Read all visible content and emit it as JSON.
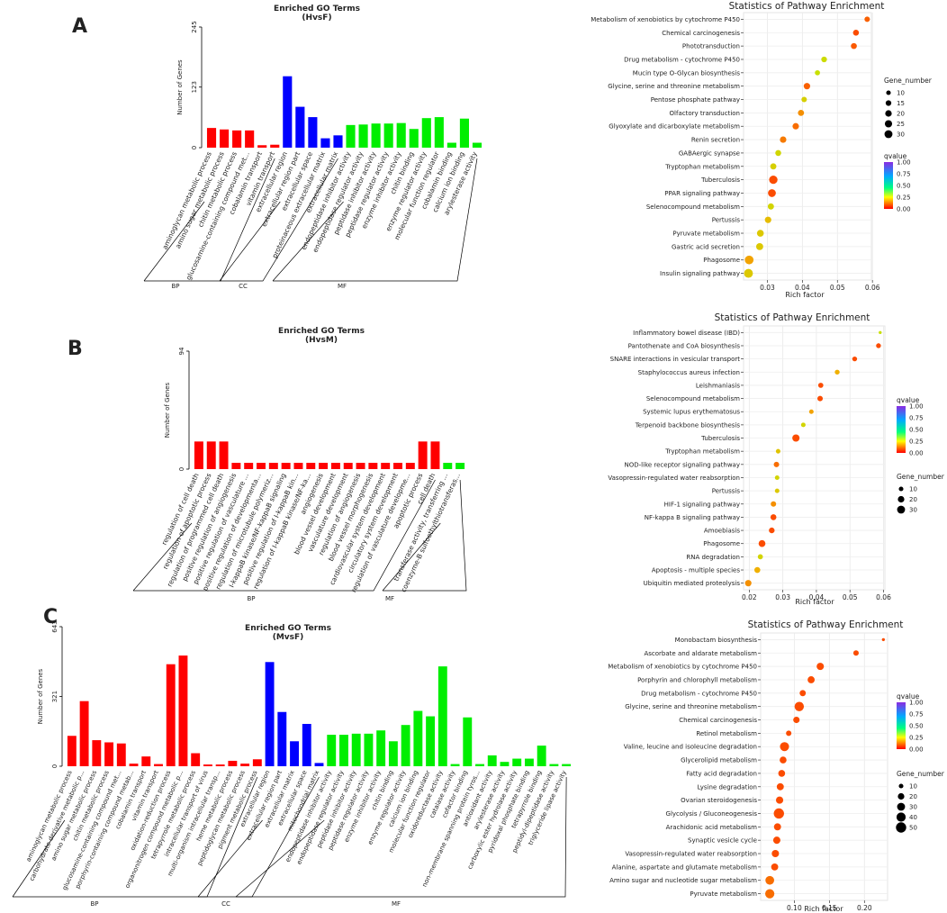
{
  "panel_labels": [
    "A",
    "B",
    "C"
  ],
  "go_group_color": {
    "BP": "#ff0000",
    "CC": "#0000ff",
    "MF": "#00ee00"
  },
  "bubble_fill_colors": {
    "low": "#ff2a00",
    "mid": "#f0b000",
    "high": "#c8e000"
  },
  "chart_data": [
    {
      "id": "goA",
      "type": "bar",
      "title": "Enriched GO Terms",
      "subtitle": "(HvsF)",
      "ylabel": "Number of Genes",
      "ylim": [
        0,
        245
      ],
      "yticks": [
        "0",
        "123",
        "245"
      ],
      "group_labels": [
        "BP",
        "CC",
        "MF"
      ],
      "categories": [
        "aminoglycan metabolic process",
        "amino sugar metabolic process",
        "chitin metabolic process",
        "glucosamine-containing compound met...",
        "cobalamin transport",
        "vitamin transport",
        "extracellular region",
        "extracellular region part",
        "extracellular space",
        "proteinaceous extracellular matrix",
        "extracellular matrix",
        "endopeptidase inhibitor activity",
        "endopeptidase regulator activity",
        "peptidase inhibitor activity",
        "peptidase regulator activity",
        "enzyme inhibitor activity",
        "chitin binding",
        "enzyme regulator activity",
        "molecular function regulator",
        "cobalamin binding",
        "calcium ion binding",
        "arylesterase activity"
      ],
      "groups": [
        "BP",
        "BP",
        "BP",
        "BP",
        "BP",
        "BP",
        "CC",
        "CC",
        "CC",
        "CC",
        "CC",
        "MF",
        "MF",
        "MF",
        "MF",
        "MF",
        "MF",
        "MF",
        "MF",
        "MF",
        "MF",
        "MF"
      ],
      "values": [
        40,
        37,
        35,
        35,
        5,
        6,
        145,
        83,
        62,
        19,
        25,
        46,
        47,
        49,
        49,
        50,
        38,
        60,
        62,
        10,
        59,
        10
      ]
    },
    {
      "id": "goB",
      "type": "bar",
      "title": "Enriched GO Terms",
      "subtitle": "(HvsM)",
      "ylabel": "Number of Genes",
      "ylim": [
        0,
        94
      ],
      "yticks": [
        "0",
        "94"
      ],
      "group_labels": [
        "BP",
        "MF"
      ],
      "categories": [
        "regulation of cell death",
        "regulation of apoptotic process",
        "regulation of programmed cell death",
        "positive regulation of angiogenesis",
        "positive regulation of vasculature ...",
        "positive regulation of developmenta...",
        "regulation of microtubule polymeriz...",
        "I-kappaB kinase/NF-kappaB signaling",
        "positive regulation of I-kappaB kin...",
        "regulation of I-kappaB kinase/NF-ka...",
        "angiogenesis",
        "blood vessel development",
        "vasculature development",
        "regulation of angiogenesis",
        "blood vessel morphogenesis",
        "cardiovascular system development",
        "circulatory system development",
        "regulation of vasculature developme...",
        "apoptotic process",
        "cell death",
        "transferase activity, transferring ...",
        "coenzyme-B sulfoethylthiotransferas..."
      ],
      "groups": [
        "BP",
        "BP",
        "BP",
        "BP",
        "BP",
        "BP",
        "BP",
        "BP",
        "BP",
        "BP",
        "BP",
        "BP",
        "BP",
        "BP",
        "BP",
        "BP",
        "BP",
        "BP",
        "BP",
        "BP",
        "MF",
        "MF"
      ],
      "values": [
        22,
        22,
        22,
        5,
        5,
        5,
        5,
        5,
        5,
        5,
        5,
        5,
        5,
        5,
        5,
        5,
        5,
        5,
        22,
        22,
        5,
        5
      ]
    },
    {
      "id": "goC",
      "type": "bar",
      "title": "Enriched GO Terms",
      "subtitle": "(MvsF)",
      "ylabel": "Number of Genes",
      "ylim": [
        0,
        643
      ],
      "yticks": [
        "0",
        "321",
        "643"
      ],
      "group_labels": [
        "BP",
        "CC",
        "MF"
      ],
      "categories": [
        "aminoglycan metabolic process",
        "carbohydrate derivative metabolic p...",
        "amino sugar metabolic process",
        "chitin metabolic process",
        "glucosamine-containing compound met...",
        "porphyrin-containing compound metab...",
        "cobalamin transport",
        "vitamin transport",
        "oxidation-reduction process",
        "organonitrogen compound metabolic p...",
        "tetrapyrrole metabolic process",
        "intracellular transport of virus",
        "multi-organism intracellular transp...",
        "heme metabolic process",
        "peptidoglycan metabolic process",
        "pigment metabolic process",
        "extracellular region",
        "extracellular region part",
        "extracellular matrix",
        "extracellular space",
        "mitochondrial matrix",
        "endopeptidase inhibitor activity",
        "endopeptidase regulator activity",
        "peptidase inhibitor activity",
        "peptidase regulator activity",
        "enzyme inhibitor activity",
        "chitin binding",
        "enzyme regulator activity",
        "calcium ion binding",
        "molecular function regulator",
        "oxidoreductase activity",
        "catalase activity",
        "cofactor binding",
        "non-membrane spanning protein tyros...",
        "antioxidant activity",
        "arylesterase activity",
        "carboxylic ester hydrolase activity",
        "pyridoxal phosphate binding",
        "tetrapyrrole binding",
        "peptidyl-dipeptidase activity",
        "triglyceride lipase activity"
      ],
      "groups": [
        "BP",
        "BP",
        "BP",
        "BP",
        "BP",
        "BP",
        "BP",
        "BP",
        "BP",
        "BP",
        "BP",
        "BP",
        "BP",
        "BP",
        "BP",
        "BP",
        "CC",
        "CC",
        "CC",
        "CC",
        "CC",
        "MF",
        "MF",
        "MF",
        "MF",
        "MF",
        "MF",
        "MF",
        "MF",
        "MF",
        "MF",
        "MF",
        "MF",
        "MF",
        "MF",
        "MF",
        "MF",
        "MF",
        "MF",
        "MF",
        "MF"
      ],
      "values": [
        140,
        300,
        120,
        110,
        105,
        12,
        45,
        10,
        470,
        510,
        60,
        8,
        8,
        25,
        12,
        32,
        480,
        250,
        115,
        195,
        15,
        145,
        145,
        150,
        150,
        165,
        115,
        190,
        255,
        230,
        460,
        10,
        225,
        10,
        50,
        20,
        35,
        35,
        95,
        10,
        10
      ]
    },
    {
      "id": "kA",
      "type": "scatter",
      "title": "Statistics of Pathway Enrichment",
      "xlabel": "Rich factor",
      "xlim": [
        0.0232,
        0.0597
      ],
      "xticks": [
        0.03,
        0.04,
        0.05,
        0.06
      ],
      "xtick_labels": [
        "0.03",
        "0.04",
        "0.05",
        "0.06"
      ],
      "size_legend_title": "Gene_number",
      "size_legend_values": [
        10,
        15,
        20,
        25,
        30
      ],
      "color_legend_title": "qvalue",
      "color_legend_ticks": [
        "1.00",
        "0.75",
        "0.50",
        "0.25",
        "0.00"
      ],
      "pathways": [
        "Metabolism of xenobiotics by cytochrome P450",
        "Chemical carcinogenesis",
        "Phototransduction",
        "Drug metabolism - cytochrome P450",
        "Mucin type O-Glycan biosynthesis",
        "Glycine, serine and threonine metabolism",
        "Pentose phosphate pathway",
        "Olfactory transduction",
        "Glyoxylate and dicarboxylate metabolism",
        "Renin secretion",
        "GABAergic synapse",
        "Tryptophan metabolism",
        "Tuberculosis",
        "PPAR signaling pathway",
        "Selenocompound metabolism",
        "Pertussis",
        "Pyruvate metabolism",
        "Gastric acid secretion",
        "Phagosome",
        "Insulin signaling pathway"
      ],
      "rich_factor": [
        0.0585,
        0.0553,
        0.0547,
        0.0462,
        0.0443,
        0.0413,
        0.0405,
        0.0396,
        0.0381,
        0.0345,
        0.0331,
        0.0317,
        0.0317,
        0.0313,
        0.031,
        0.0302,
        0.028,
        0.0278,
        0.0248,
        0.0246
      ],
      "gene_number": [
        10,
        12,
        12,
        11,
        9,
        14,
        10,
        13,
        14,
        14,
        12,
        13,
        24,
        21,
        13,
        14,
        16,
        17,
        26,
        27
      ],
      "qvalue": [
        0.08,
        0.05,
        0.07,
        0.38,
        0.45,
        0.08,
        0.33,
        0.15,
        0.1,
        0.12,
        0.36,
        0.33,
        0.05,
        0.05,
        0.35,
        0.25,
        0.3,
        0.3,
        0.18,
        0.3
      ]
    },
    {
      "id": "kB",
      "type": "scatter",
      "title": "Statistics of Pathway Enrichment",
      "xlabel": "Rich factor",
      "xlim": [
        0.0183,
        0.0604
      ],
      "xticks": [
        0.02,
        0.03,
        0.04,
        0.05,
        0.06
      ],
      "xtick_labels": [
        "0.02",
        "0.03",
        "0.04",
        "0.05",
        "0.06"
      ],
      "size_legend_title": "Gene_number",
      "size_legend_values": [
        10,
        20,
        30
      ],
      "color_legend_title": "qvalue",
      "color_legend_ticks": [
        "1.00",
        "0.75",
        "0.50",
        "0.25",
        "0.00"
      ],
      "pathways": [
        "Inflammatory bowel disease (IBD)",
        "Pantothenate and CoA biosynthesis",
        "SNARE interactions in vesicular transport",
        "Staphylococcus aureus infection",
        "Leishmaniasis",
        "Selenocompound metabolism",
        "Systemic lupus erythematosus",
        "Terpenoid backbone biosynthesis",
        "Tuberculosis",
        "Tryptophan metabolism",
        "NOD-like receptor signaling pathway",
        "Vasopressin-regulated water reabsorption",
        "Pertussis",
        "HIF-1 signaling pathway",
        "NF-kappa B signaling pathway",
        "Amoebiasis",
        "Phagosome",
        "RNA degradation",
        "Apoptosis - multiple species",
        "Ubiquitin mediated proteolysis"
      ],
      "rich_factor": [
        0.059,
        0.0585,
        0.0514,
        0.0462,
        0.0413,
        0.0411,
        0.0385,
        0.0361,
        0.0339,
        0.0286,
        0.0281,
        0.0283,
        0.0283,
        0.0272,
        0.0272,
        0.0267,
        0.0238,
        0.0233,
        0.0224,
        0.0197
      ],
      "gene_number": [
        3,
        8,
        8,
        8,
        9,
        10,
        7,
        7,
        18,
        7,
        10,
        7,
        7,
        10,
        12,
        11,
        16,
        9,
        12,
        14
      ],
      "qvalue": [
        0.4,
        0.05,
        0.05,
        0.2,
        0.05,
        0.05,
        0.18,
        0.35,
        0.05,
        0.28,
        0.1,
        0.35,
        0.3,
        0.15,
        0.05,
        0.05,
        0.05,
        0.35,
        0.2,
        0.15
      ]
    },
    {
      "id": "kC",
      "type": "scatter",
      "title": "Statistics of Pathway Enrichment",
      "xlabel": "Rich factor",
      "xlim": [
        0.052,
        0.233
      ],
      "xticks": [
        0.1,
        0.15,
        0.2
      ],
      "xtick_labels": [
        "0.10",
        "0.15",
        "0.20"
      ],
      "size_legend_title": "Gene_number",
      "size_legend_values": [
        10,
        20,
        30,
        40,
        50
      ],
      "color_legend_title": "qvalue",
      "color_legend_ticks": [
        "1.00",
        "0.75",
        "0.50",
        "0.25",
        "0.00"
      ],
      "pathways": [
        "Monobactam biosynthesis",
        "Ascorbate and aldarate metabolism",
        "Metabolism of xenobiotics by cytochrome P450",
        "Porphyrin and chlorophyll metabolism",
        "Drug metabolism - cytochrome P450",
        "Glycine, serine and threonine metabolism",
        "Chemical carcinogenesis",
        "Retinol metabolism",
        "Valine, leucine and isoleucine degradation",
        "Glycerolipid metabolism",
        "Fatty acid degradation",
        "Lysine degradation",
        "Ovarian steroidogenesis",
        "Glycolysis / Gluconeogenesis",
        "Arachidonic acid metabolism",
        "Synaptic vesicle cycle",
        "Vasopressin-regulated water reabsorption",
        "Alanine, aspartate and glutamate metabolism",
        "Amino sugar and nucleotide sugar metabolism",
        "Pyruvate metabolism"
      ],
      "rich_factor": [
        0.227,
        0.188,
        0.137,
        0.124,
        0.112,
        0.107,
        0.103,
        0.092,
        0.086,
        0.084,
        0.082,
        0.08,
        0.079,
        0.078,
        0.076,
        0.075,
        0.073,
        0.072,
        0.065,
        0.065
      ],
      "gene_number": [
        3,
        10,
        18,
        17,
        13,
        30,
        14,
        10,
        28,
        16,
        16,
        17,
        18,
        36,
        17,
        18,
        18,
        17,
        26,
        29
      ],
      "qvalue": [
        0.05,
        0.05,
        0.05,
        0.05,
        0.05,
        0.05,
        0.05,
        0.05,
        0.05,
        0.05,
        0.05,
        0.05,
        0.05,
        0.05,
        0.05,
        0.05,
        0.05,
        0.05,
        0.1,
        0.1
      ]
    }
  ]
}
